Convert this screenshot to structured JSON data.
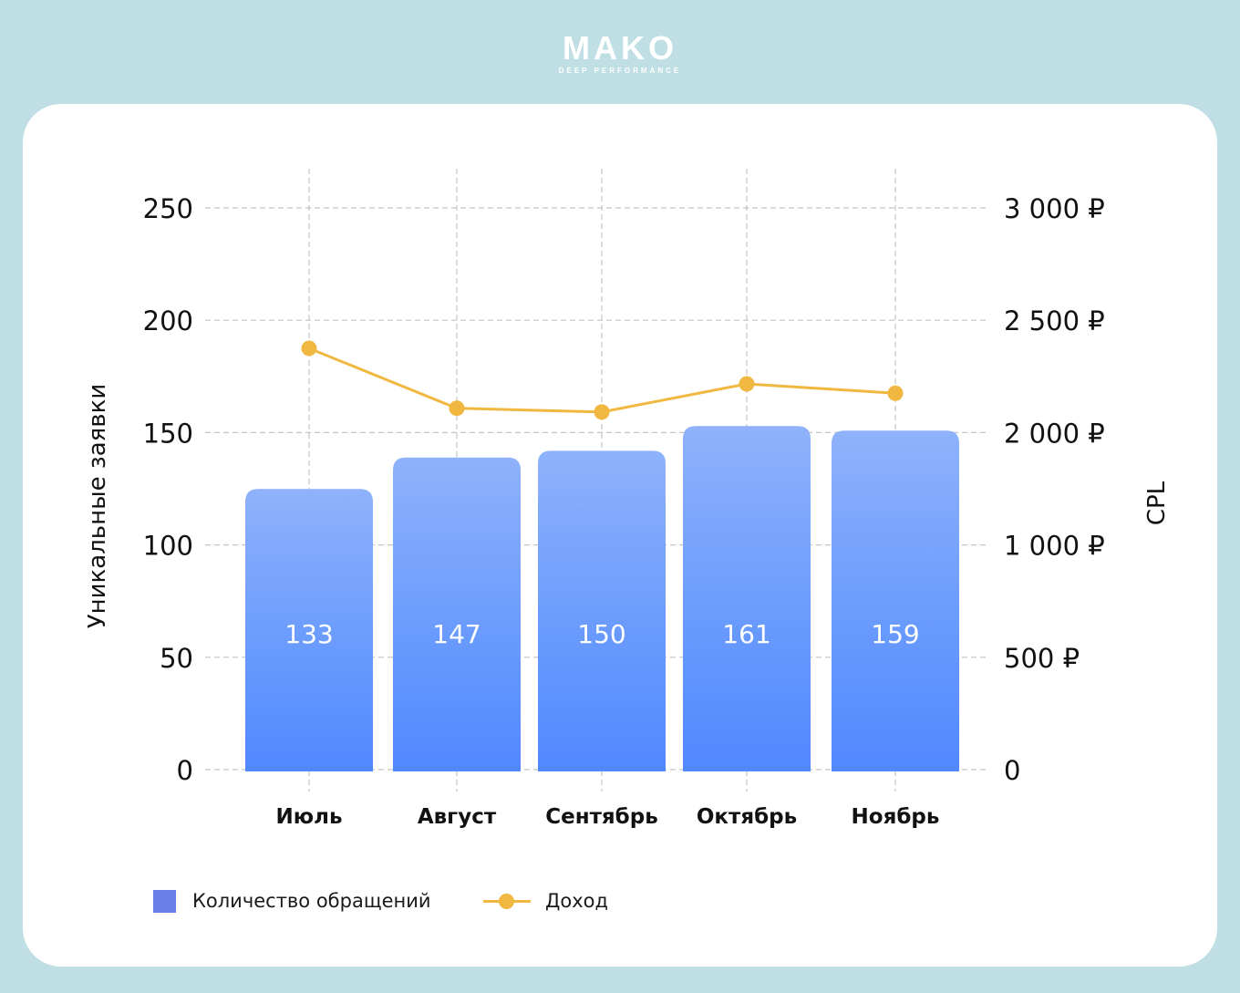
{
  "logo": {
    "word": "MAKO",
    "tagline": "DEEP PERFORMANCE"
  },
  "colors": {
    "background": "#bfdfe4",
    "bar_top": "#8fb2fb",
    "bar_bottom": "#5188fe",
    "line": "#f0b840",
    "legend_bar": "#6b7fe8"
  },
  "chart_data": {
    "type": "bar",
    "categories": [
      "Июль",
      "Август",
      "Сентябрь",
      "Октябрь",
      "Ноябрь"
    ],
    "series": [
      {
        "name": "Количество обращений",
        "type": "bar",
        "axis": "left",
        "values": [
          133,
          147,
          150,
          161,
          159
        ]
      },
      {
        "name": "Доход",
        "type": "line",
        "axis": "right",
        "values": [
          2250,
          1930,
          1910,
          2060,
          2010
        ]
      }
    ],
    "data_labels": [
      "133",
      "147",
      "150",
      "161",
      "159"
    ],
    "ylabel": "Уникальные заявки",
    "y2label": "CPL",
    "ylim": [
      0,
      250
    ],
    "y2lim": [
      0,
      3000
    ],
    "y_ticks": [
      "0",
      "50",
      "100",
      "150",
      "200",
      "250"
    ],
    "y2_ticks": [
      "0",
      "500 ₽",
      "1 000 ₽",
      "2 000 ₽",
      "2 500 ₽",
      "3 000 ₽"
    ],
    "grid": true,
    "legend": "bottom-left"
  }
}
